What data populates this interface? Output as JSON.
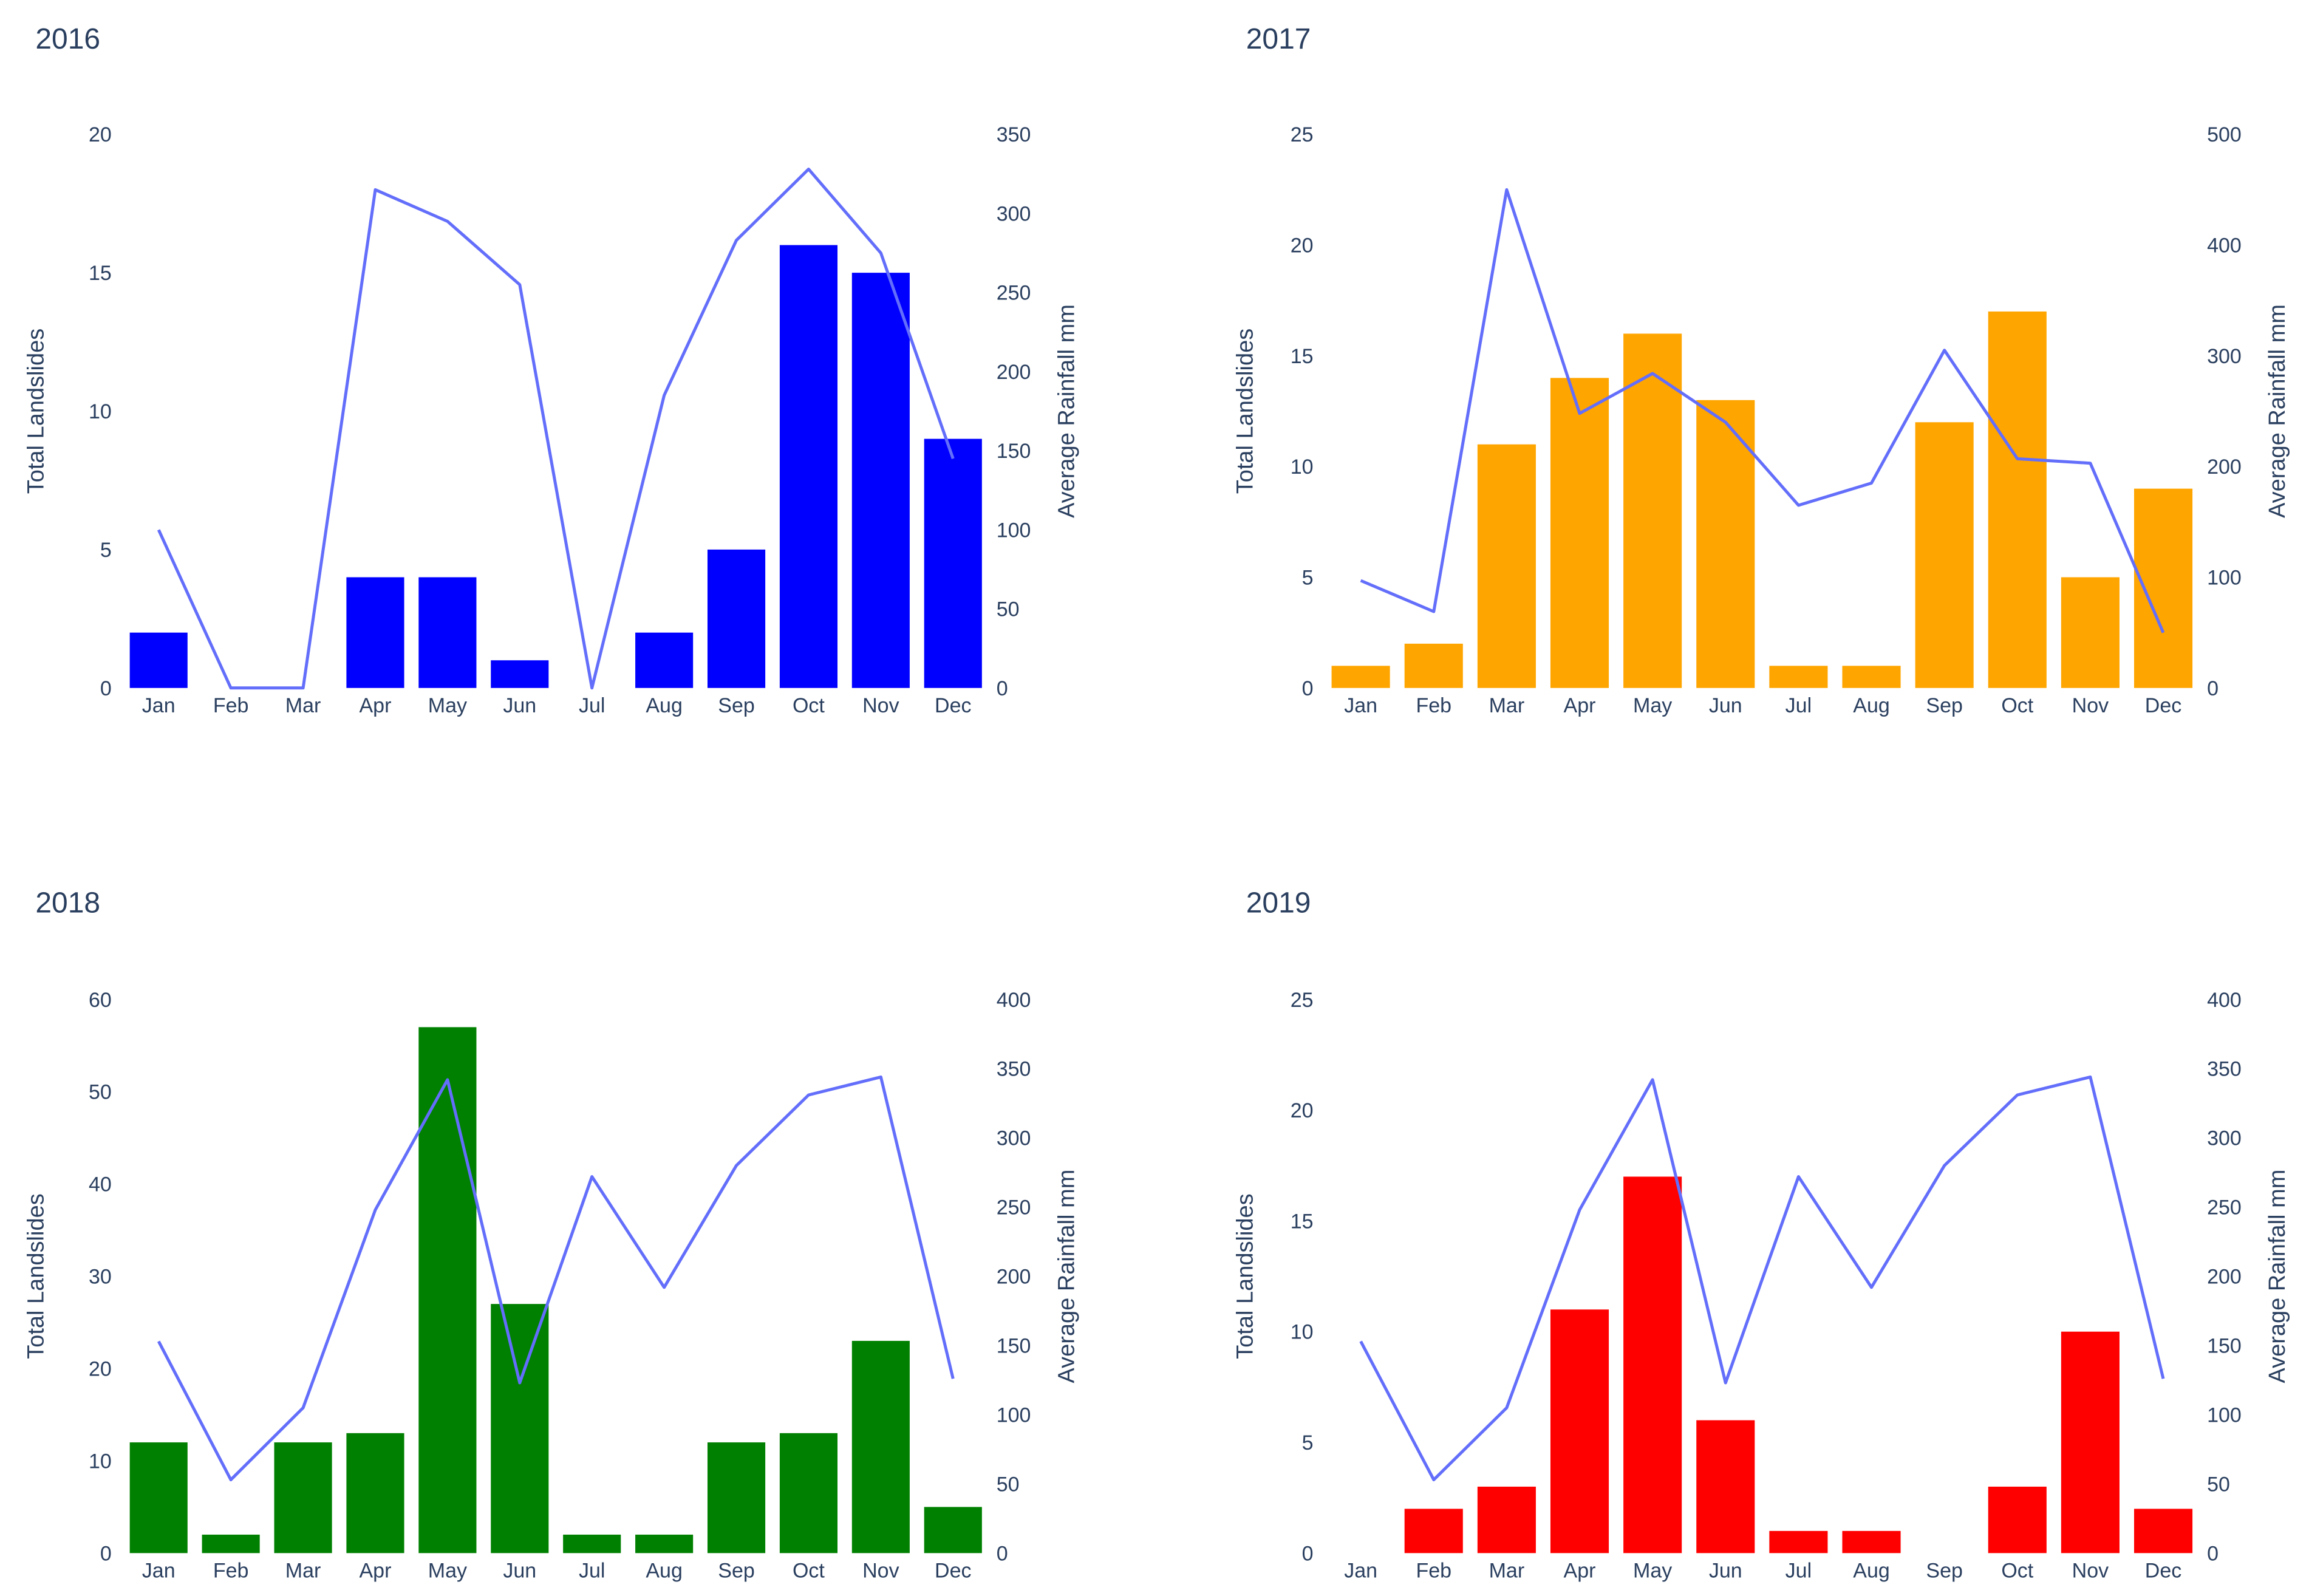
{
  "chart_data": [
    {
      "type": "bar+line",
      "title": "2016",
      "categories": [
        "Jan",
        "Feb",
        "Mar",
        "Apr",
        "May",
        "Jun",
        "Jul",
        "Aug",
        "Sep",
        "Oct",
        "Nov",
        "Dec"
      ],
      "bar_series": {
        "name": "Total Landslides",
        "color": "#0000ff",
        "values": [
          2,
          0,
          0,
          4,
          4,
          1,
          0,
          2,
          5,
          16,
          15,
          9
        ]
      },
      "line_series": {
        "name": "Average Rainfall mm",
        "color": "#636efa",
        "values": [
          100,
          0,
          0,
          315,
          295,
          255,
          0,
          185,
          283,
          328,
          275,
          145
        ]
      },
      "ylabel": "Total Landslides",
      "y2label": "Average Rainfall mm",
      "ylim": [
        0,
        20
      ],
      "yticks": [
        0,
        5,
        10,
        15,
        20
      ],
      "yticklabels": [
        "0",
        "5",
        "10",
        "15",
        "20"
      ],
      "y2lim": [
        0,
        350
      ],
      "y2ticks": [
        0,
        50,
        100,
        150,
        200,
        250,
        300,
        350
      ],
      "y2ticklabels": [
        "0",
        "50",
        "100",
        "150",
        "200",
        "250",
        "300",
        "350"
      ]
    },
    {
      "type": "bar+line",
      "title": "2017",
      "categories": [
        "Jan",
        "Feb",
        "Mar",
        "Apr",
        "May",
        "Jun",
        "Jul",
        "Aug",
        "Sep",
        "Oct",
        "Nov",
        "Dec"
      ],
      "bar_series": {
        "name": "Total Landslides",
        "color": "#ffa500",
        "values": [
          1,
          2,
          11,
          14,
          16,
          13,
          1,
          1,
          12,
          17,
          5,
          9
        ]
      },
      "line_series": {
        "name": "Average Rainfall mm",
        "color": "#636efa",
        "values": [
          97,
          69,
          450,
          248,
          284,
          240,
          165,
          185,
          305,
          207,
          203,
          50
        ]
      },
      "ylabel": "Total Landslides",
      "y2label": "Average Rainfall mm",
      "ylim": [
        0,
        25
      ],
      "yticks": [
        0,
        5,
        10,
        15,
        20,
        25
      ],
      "yticklabels": [
        "0",
        "5",
        "10",
        "15",
        "20",
        "25"
      ],
      "y2lim": [
        0,
        500
      ],
      "y2ticks": [
        0,
        100,
        200,
        300,
        400,
        500
      ],
      "y2ticklabels": [
        "0",
        "100",
        "200",
        "300",
        "400",
        "500"
      ]
    },
    {
      "type": "bar+line",
      "title": "2018",
      "categories": [
        "Jan",
        "Feb",
        "Mar",
        "Apr",
        "May",
        "Jun",
        "Jul",
        "Aug",
        "Sep",
        "Oct",
        "Nov",
        "Dec"
      ],
      "bar_series": {
        "name": "Total Landslides",
        "color": "#008000",
        "values": [
          12,
          2,
          12,
          13,
          57,
          27,
          2,
          2,
          12,
          13,
          23,
          5
        ]
      },
      "line_series": {
        "name": "Average Rainfall mm",
        "color": "#636efa",
        "values": [
          153,
          53,
          105,
          248,
          342,
          123,
          272,
          192,
          280,
          331,
          344,
          126
        ]
      },
      "ylabel": "Total Landslides",
      "y2label": "Average Rainfall mm",
      "ylim": [
        0,
        60
      ],
      "yticks": [
        0,
        10,
        20,
        30,
        40,
        50,
        60
      ],
      "yticklabels": [
        "0",
        "10",
        "20",
        "30",
        "40",
        "50",
        "60"
      ],
      "y2lim": [
        0,
        400
      ],
      "y2ticks": [
        0,
        50,
        100,
        150,
        200,
        250,
        300,
        350,
        400
      ],
      "y2ticklabels": [
        "0",
        "50",
        "100",
        "150",
        "200",
        "250",
        "300",
        "350",
        "400"
      ]
    },
    {
      "type": "bar+line",
      "title": "2019",
      "categories": [
        "Jan",
        "Feb",
        "Mar",
        "Apr",
        "May",
        "Jun",
        "Jul",
        "Aug",
        "Sep",
        "Oct",
        "Nov",
        "Dec"
      ],
      "bar_series": {
        "name": "Total Landslides",
        "color": "#ff0000",
        "values": [
          0,
          2,
          3,
          11,
          17,
          6,
          1,
          1,
          0,
          3,
          10,
          2
        ]
      },
      "line_series": {
        "name": "Average Rainfall mm",
        "color": "#636efa",
        "values": [
          153,
          53,
          105,
          248,
          342,
          123,
          272,
          192,
          280,
          331,
          344,
          126
        ]
      },
      "ylabel": "Total Landslides",
      "y2label": "Average Rainfall mm",
      "ylim": [
        0,
        25
      ],
      "yticks": [
        0,
        5,
        10,
        15,
        20,
        25
      ],
      "yticklabels": [
        "0",
        "5",
        "10",
        "15",
        "20",
        "25"
      ],
      "y2lim": [
        0,
        400
      ],
      "y2ticks": [
        0,
        50,
        100,
        150,
        200,
        250,
        300,
        350,
        400
      ],
      "y2ticklabels": [
        "0",
        "50",
        "100",
        "150",
        "200",
        "250",
        "300",
        "350",
        "400"
      ]
    }
  ]
}
